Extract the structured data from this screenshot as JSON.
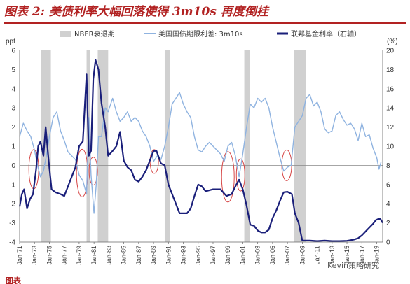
{
  "title": "图表 2:  美债利率大幅回落使得 3m10s 再度倒挂",
  "watermark": "Kevin策略研究",
  "footer_text": "图表",
  "chart_data": {
    "type": "line",
    "title": "图表 2:  美债利率大幅回落使得 3m10s 再度倒挂",
    "y_left_label": "ppt",
    "y_right_label": "(%)",
    "ylim_left": [
      -4,
      6
    ],
    "ylim_right": [
      0,
      20
    ],
    "y_left_ticks": [
      "6",
      "5",
      "4",
      "3",
      "2",
      "1",
      "0",
      "-1",
      "-2",
      "-3",
      "-4"
    ],
    "y_right_ticks": [
      "20",
      "18",
      "16",
      "14",
      "12",
      "10",
      "8",
      "6",
      "4",
      "2",
      "0"
    ],
    "x_start": 1971.0,
    "x_end": 2019.8,
    "x_ticks": [
      "Jan-71",
      "Jan-73",
      "Jan-75",
      "Jan-77",
      "Jan-79",
      "Jan-81",
      "Jan-83",
      "Jan-85",
      "Jan-87",
      "Jan-89",
      "Jan-91",
      "Jan-93",
      "Jan-95",
      "Jan-97",
      "Jan-99",
      "Jan-01",
      "Jan-03",
      "Jan-05",
      "Jan-07",
      "Jan-09",
      "Jan-11",
      "Jan-13",
      "Jan-15",
      "Jan-17",
      "Jan-19"
    ],
    "legend": [
      {
        "name": "NBER衰退期",
        "color": "#d0d0d0",
        "kind": "bar"
      },
      {
        "name": "美国国债期限利差: 3m10s",
        "color": "#8fb3e0",
        "kind": "line"
      },
      {
        "name": "联邦基金利率（右轴）",
        "color": "#1a1f7a",
        "kind": "line"
      }
    ],
    "recessions": [
      [
        1973.9,
        1975.2
      ],
      [
        1980.0,
        1980.5
      ],
      [
        1981.5,
        1982.9
      ],
      [
        1990.5,
        1991.2
      ],
      [
        2001.2,
        2001.9
      ],
      [
        2007.9,
        2009.5
      ]
    ],
    "series": [
      {
        "name": "美国国债期限利差: 3m10s",
        "axis": "left",
        "color": "#8fb3e0",
        "x": [
          1971.0,
          1971.5,
          1972.0,
          1972.5,
          1973.0,
          1973.4,
          1973.8,
          1974.2,
          1974.6,
          1975.0,
          1975.5,
          1976.0,
          1976.5,
          1977.0,
          1977.5,
          1978.0,
          1978.5,
          1979.0,
          1979.5,
          1980.0,
          1980.3,
          1980.6,
          1981.0,
          1981.3,
          1981.6,
          1982.0,
          1982.5,
          1982.9,
          1983.5,
          1984.0,
          1984.5,
          1985.0,
          1985.5,
          1986.0,
          1986.5,
          1987.0,
          1987.5,
          1988.0,
          1988.5,
          1989.0,
          1989.5,
          1990.0,
          1990.5,
          1991.0,
          1991.5,
          1992.0,
          1992.5,
          1993.0,
          1993.5,
          1994.0,
          1994.5,
          1995.0,
          1995.5,
          1996.0,
          1996.5,
          1997.0,
          1997.5,
          1998.0,
          1998.5,
          1999.0,
          1999.5,
          2000.0,
          2000.5,
          2001.0,
          2001.5,
          2002.0,
          2002.5,
          2003.0,
          2003.5,
          2004.0,
          2004.5,
          2005.0,
          2005.5,
          2006.0,
          2006.5,
          2007.0,
          2007.5,
          2008.0,
          2008.5,
          2009.0,
          2009.5,
          2010.0,
          2010.5,
          2011.0,
          2011.5,
          2012.0,
          2012.5,
          2013.0,
          2013.5,
          2014.0,
          2014.5,
          2015.0,
          2015.5,
          2016.0,
          2016.5,
          2017.0,
          2017.5,
          2018.0,
          2018.5,
          2019.0,
          2019.3,
          2019.6
        ],
        "values": [
          1.5,
          2.2,
          1.8,
          1.5,
          0.8,
          0.0,
          -0.6,
          -0.3,
          0.5,
          1.5,
          2.5,
          2.8,
          1.8,
          1.3,
          0.7,
          0.5,
          0.3,
          -0.5,
          -0.8,
          -1.5,
          2.5,
          -0.5,
          -2.5,
          -1.0,
          1.5,
          1.5,
          3.0,
          2.8,
          3.5,
          2.8,
          2.3,
          2.5,
          2.8,
          2.3,
          2.5,
          2.3,
          1.8,
          1.5,
          1.0,
          0.2,
          0.5,
          0.3,
          1.0,
          2.0,
          3.2,
          3.5,
          3.8,
          3.2,
          2.8,
          2.5,
          1.5,
          0.8,
          0.7,
          1.0,
          1.2,
          1.0,
          0.8,
          0.6,
          0.2,
          1.0,
          1.2,
          0.5,
          -0.6,
          0.6,
          2.0,
          3.2,
          3.0,
          3.5,
          3.3,
          3.5,
          3.0,
          2.0,
          1.2,
          0.4,
          -0.3,
          -0.1,
          0.0,
          2.0,
          2.3,
          2.6,
          3.5,
          3.7,
          3.1,
          3.3,
          2.8,
          1.9,
          1.7,
          1.8,
          2.6,
          2.8,
          2.4,
          2.1,
          2.2,
          1.9,
          1.3,
          2.2,
          1.5,
          1.6,
          0.9,
          0.4,
          -0.2,
          0.2
        ]
      },
      {
        "name": "联邦基金利率（右轴）",
        "axis": "right",
        "color": "#1a1f7a",
        "x": [
          1971.0,
          1971.3,
          1971.6,
          1972.0,
          1972.4,
          1972.8,
          1973.2,
          1973.5,
          1973.8,
          1974.2,
          1974.5,
          1974.9,
          1975.3,
          1975.8,
          1976.5,
          1977.0,
          1977.5,
          1978.0,
          1978.5,
          1979.0,
          1979.5,
          1980.0,
          1980.3,
          1980.6,
          1980.9,
          1981.2,
          1981.6,
          1982.0,
          1982.5,
          1982.9,
          1983.5,
          1984.0,
          1984.5,
          1985.0,
          1985.5,
          1986.0,
          1986.5,
          1987.0,
          1987.5,
          1988.0,
          1988.5,
          1989.0,
          1989.4,
          1990.0,
          1990.5,
          1991.0,
          1991.5,
          1992.0,
          1992.5,
          1993.0,
          1993.5,
          1994.0,
          1994.5,
          1995.0,
          1995.5,
          1996.0,
          1997.0,
          1998.0,
          1998.8,
          1999.5,
          2000.0,
          2000.5,
          2001.0,
          2001.5,
          2002.0,
          2002.5,
          2003.0,
          2003.5,
          2004.0,
          2004.5,
          2005.0,
          2005.5,
          2006.0,
          2006.5,
          2007.0,
          2007.6,
          2008.0,
          2008.5,
          2008.9,
          2009.0,
          2010.0,
          2011.0,
          2012.0,
          2013.0,
          2014.0,
          2015.0,
          2015.9,
          2016.5,
          2017.0,
          2017.5,
          2018.0,
          2018.5,
          2018.9,
          2019.2,
          2019.5,
          2019.8
        ],
        "values": [
          3.7,
          5.0,
          5.5,
          3.5,
          4.5,
          5.0,
          7.5,
          10.0,
          10.5,
          9.0,
          12.0,
          8.5,
          5.5,
          5.2,
          5.0,
          4.8,
          5.8,
          6.8,
          7.8,
          10.0,
          10.5,
          17.5,
          9.0,
          9.5,
          17.0,
          19.0,
          18.0,
          14.5,
          12.0,
          9.0,
          9.5,
          10.0,
          11.5,
          8.5,
          7.8,
          7.5,
          6.5,
          6.3,
          6.8,
          7.5,
          8.5,
          9.5,
          9.5,
          8.2,
          8.0,
          6.0,
          5.0,
          4.0,
          3.0,
          3.0,
          3.0,
          3.5,
          4.8,
          6.0,
          5.8,
          5.3,
          5.5,
          5.5,
          4.8,
          5.0,
          5.8,
          6.5,
          5.5,
          3.8,
          1.8,
          1.7,
          1.2,
          1.0,
          1.0,
          1.3,
          2.5,
          3.3,
          4.3,
          5.2,
          5.25,
          5.0,
          3.0,
          2.0,
          0.5,
          0.15,
          0.15,
          0.1,
          0.15,
          0.1,
          0.1,
          0.13,
          0.25,
          0.4,
          0.7,
          1.1,
          1.5,
          1.9,
          2.3,
          2.4,
          2.4,
          2.0
        ]
      }
    ],
    "annotations": "red ellipses marking spread inversions"
  }
}
